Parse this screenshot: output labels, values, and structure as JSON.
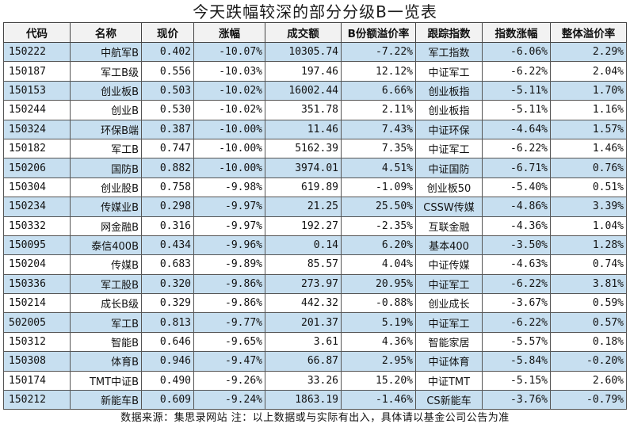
{
  "title": "今天跌幅较深的部分分级B一览表",
  "headers": [
    "代码",
    "名称",
    "现价",
    "涨幅",
    "成交额",
    "B份额溢价率",
    "跟踪指数",
    "指数涨幅",
    "整体溢价率"
  ],
  "rows": [
    [
      "150222",
      "中航军B",
      "0.402",
      "-10.07%",
      "10305.74",
      "-7.22%",
      "军工指数",
      "-6.06%",
      "2.29%"
    ],
    [
      "150187",
      "军工B级",
      "0.556",
      "-10.03%",
      "197.46",
      "12.12%",
      "中证军工",
      "-6.22%",
      "2.04%"
    ],
    [
      "150153",
      "创业板B",
      "0.503",
      "-10.02%",
      "16002.44",
      "6.66%",
      "创业板指",
      "-5.11%",
      "1.70%"
    ],
    [
      "150244",
      "创业B",
      "0.530",
      "-10.02%",
      "351.78",
      "2.11%",
      "创业板指",
      "-5.11%",
      "1.16%"
    ],
    [
      "150324",
      "环保B端",
      "0.387",
      "-10.00%",
      "11.46",
      "7.43%",
      "中证环保",
      "-4.64%",
      "1.57%"
    ],
    [
      "150182",
      "军工B",
      "0.747",
      "-10.00%",
      "5162.39",
      "7.35%",
      "中证军工",
      "-6.22%",
      "1.46%"
    ],
    [
      "150206",
      "国防B",
      "0.882",
      "-10.00%",
      "3974.01",
      "4.51%",
      "中证国防",
      "-6.71%",
      "0.76%"
    ],
    [
      "150304",
      "创业股B",
      "0.758",
      "-9.98%",
      "619.89",
      "-1.09%",
      "创业板50",
      "-5.40%",
      "0.51%"
    ],
    [
      "150234",
      "传媒业B",
      "0.298",
      "-9.97%",
      "21.25",
      "25.50%",
      "CSSW传媒",
      "-4.86%",
      "3.39%"
    ],
    [
      "150332",
      "网金融B",
      "0.316",
      "-9.97%",
      "192.27",
      "-2.35%",
      "互联金融",
      "-4.36%",
      "1.04%"
    ],
    [
      "150095",
      "泰信400B",
      "0.434",
      "-9.96%",
      "0.14",
      "6.20%",
      "基本400",
      "-3.50%",
      "1.28%"
    ],
    [
      "150204",
      "传媒B",
      "0.683",
      "-9.89%",
      "85.57",
      "4.04%",
      "中证传媒",
      "-4.63%",
      "0.74%"
    ],
    [
      "150336",
      "军工股B",
      "0.320",
      "-9.86%",
      "273.97",
      "20.95%",
      "中证军工",
      "-6.22%",
      "3.81%"
    ],
    [
      "150214",
      "成长B级",
      "0.329",
      "-9.86%",
      "442.32",
      "-0.88%",
      "创业成长",
      "-3.67%",
      "0.59%"
    ],
    [
      "502005",
      "军工B",
      "0.813",
      "-9.77%",
      "201.37",
      "5.19%",
      "中证军工",
      "-6.22%",
      "0.57%"
    ],
    [
      "150312",
      "智能B",
      "0.646",
      "-9.65%",
      "3.61",
      "4.36%",
      "智能家居",
      "-5.57%",
      "0.18%"
    ],
    [
      "150308",
      "体育B",
      "0.946",
      "-9.47%",
      "66.87",
      "2.95%",
      "中证体育",
      "-5.84%",
      "-0.20%"
    ],
    [
      "150174",
      "TMT中证B",
      "0.490",
      "-9.26%",
      "33.26",
      "15.20%",
      "中证TMT",
      "-5.15%",
      "2.60%"
    ],
    [
      "150212",
      "新能车B",
      "0.609",
      "-9.24%",
      "1863.19",
      "-1.46%",
      "CS新能车",
      "-3.76%",
      "-0.79%"
    ]
  ],
  "footer": "数据来源：集思录网站 注：以上数据或与实际有出入，具体请以基金公司公告为准"
}
